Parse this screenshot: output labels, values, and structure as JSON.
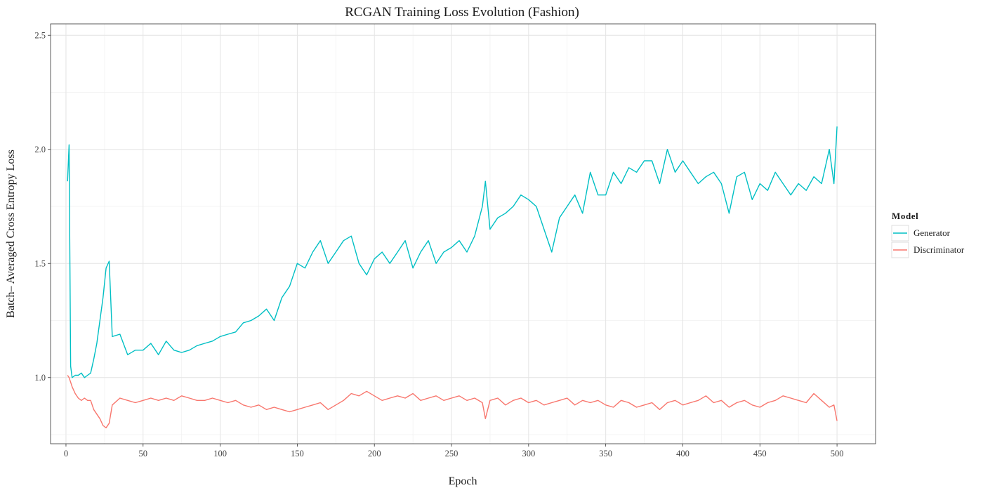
{
  "chart_data": {
    "type": "line",
    "title": "RCGAN Training Loss Evolution (Fashion)",
    "xlabel": "Epoch",
    "ylabel": "Batch– Averaged Cross Entropy Loss",
    "xlim": [
      -10,
      525
    ],
    "ylim": [
      0.71,
      2.55
    ],
    "xticks": [
      0,
      50,
      100,
      150,
      200,
      250,
      300,
      350,
      400,
      450,
      500
    ],
    "yticks": [
      1.0,
      1.5,
      2.0,
      2.5
    ],
    "ytick_labels": [
      "1.0",
      "1.5",
      "2.0",
      "2.5"
    ],
    "grid": true,
    "legend": {
      "title": "Model",
      "position": "right"
    },
    "series": [
      {
        "name": "Generator",
        "color": "#00BFC4",
        "x": [
          1,
          2,
          3,
          4,
          6,
          8,
          10,
          12,
          14,
          16,
          18,
          20,
          22,
          24,
          26,
          28,
          30,
          35,
          40,
          45,
          50,
          55,
          60,
          65,
          70,
          75,
          80,
          85,
          90,
          95,
          100,
          105,
          110,
          115,
          120,
          125,
          130,
          135,
          140,
          145,
          150,
          155,
          160,
          165,
          170,
          175,
          180,
          185,
          190,
          195,
          200,
          205,
          210,
          215,
          220,
          225,
          230,
          235,
          240,
          245,
          250,
          255,
          260,
          265,
          270,
          272,
          275,
          280,
          285,
          290,
          295,
          300,
          305,
          310,
          315,
          320,
          325,
          330,
          335,
          340,
          345,
          350,
          355,
          360,
          365,
          370,
          375,
          380,
          385,
          390,
          395,
          400,
          405,
          410,
          415,
          420,
          425,
          430,
          435,
          440,
          445,
          450,
          455,
          460,
          465,
          470,
          475,
          480,
          485,
          490,
          495,
          498,
          500
        ],
        "values": [
          1.86,
          2.02,
          1.05,
          1.0,
          1.01,
          1.01,
          1.02,
          1.0,
          1.01,
          1.02,
          1.08,
          1.15,
          1.25,
          1.35,
          1.48,
          1.51,
          1.18,
          1.19,
          1.1,
          1.12,
          1.12,
          1.15,
          1.1,
          1.16,
          1.12,
          1.11,
          1.12,
          1.14,
          1.15,
          1.16,
          1.18,
          1.19,
          1.2,
          1.24,
          1.25,
          1.27,
          1.3,
          1.25,
          1.35,
          1.4,
          1.5,
          1.48,
          1.55,
          1.6,
          1.5,
          1.55,
          1.6,
          1.62,
          1.5,
          1.45,
          1.52,
          1.55,
          1.5,
          1.55,
          1.6,
          1.48,
          1.55,
          1.6,
          1.5,
          1.55,
          1.57,
          1.6,
          1.55,
          1.62,
          1.75,
          1.86,
          1.65,
          1.7,
          1.72,
          1.75,
          1.8,
          1.78,
          1.75,
          1.65,
          1.55,
          1.7,
          1.75,
          1.8,
          1.72,
          1.9,
          1.8,
          1.8,
          1.9,
          1.85,
          1.92,
          1.9,
          1.95,
          1.95,
          1.85,
          2.0,
          1.9,
          1.95,
          1.9,
          1.85,
          1.88,
          1.9,
          1.85,
          1.72,
          1.88,
          1.9,
          1.78,
          1.85,
          1.82,
          1.9,
          1.85,
          1.8,
          1.85,
          1.82,
          1.88,
          1.85,
          2.0,
          1.85,
          2.1
        ]
      },
      {
        "name": "Discriminator",
        "color": "#F8766D",
        "x": [
          1,
          2,
          3,
          4,
          6,
          8,
          10,
          12,
          14,
          16,
          18,
          20,
          22,
          24,
          26,
          28,
          30,
          35,
          40,
          45,
          50,
          55,
          60,
          65,
          70,
          75,
          80,
          85,
          90,
          95,
          100,
          105,
          110,
          115,
          120,
          125,
          130,
          135,
          140,
          145,
          150,
          155,
          160,
          165,
          170,
          175,
          180,
          185,
          190,
          195,
          200,
          205,
          210,
          215,
          220,
          225,
          230,
          235,
          240,
          245,
          250,
          255,
          260,
          265,
          270,
          272,
          275,
          280,
          285,
          290,
          295,
          300,
          305,
          310,
          315,
          320,
          325,
          330,
          335,
          340,
          345,
          350,
          355,
          360,
          365,
          370,
          375,
          380,
          385,
          390,
          395,
          400,
          405,
          410,
          415,
          420,
          425,
          430,
          435,
          440,
          445,
          450,
          455,
          460,
          465,
          470,
          475,
          480,
          485,
          490,
          495,
          498,
          500
        ],
        "values": [
          1.01,
          1.0,
          0.98,
          0.96,
          0.93,
          0.91,
          0.9,
          0.91,
          0.9,
          0.9,
          0.86,
          0.84,
          0.82,
          0.79,
          0.78,
          0.8,
          0.88,
          0.91,
          0.9,
          0.89,
          0.9,
          0.91,
          0.9,
          0.91,
          0.9,
          0.92,
          0.91,
          0.9,
          0.9,
          0.91,
          0.9,
          0.89,
          0.9,
          0.88,
          0.87,
          0.88,
          0.86,
          0.87,
          0.86,
          0.85,
          0.86,
          0.87,
          0.88,
          0.89,
          0.86,
          0.88,
          0.9,
          0.93,
          0.92,
          0.94,
          0.92,
          0.9,
          0.91,
          0.92,
          0.91,
          0.93,
          0.9,
          0.91,
          0.92,
          0.9,
          0.91,
          0.92,
          0.9,
          0.91,
          0.89,
          0.82,
          0.9,
          0.91,
          0.88,
          0.9,
          0.91,
          0.89,
          0.9,
          0.88,
          0.89,
          0.9,
          0.91,
          0.88,
          0.9,
          0.89,
          0.9,
          0.88,
          0.87,
          0.9,
          0.89,
          0.87,
          0.88,
          0.89,
          0.86,
          0.89,
          0.9,
          0.88,
          0.89,
          0.9,
          0.92,
          0.89,
          0.9,
          0.87,
          0.89,
          0.9,
          0.88,
          0.87,
          0.89,
          0.9,
          0.92,
          0.91,
          0.9,
          0.89,
          0.93,
          0.9,
          0.87,
          0.88,
          0.81
        ]
      }
    ]
  }
}
